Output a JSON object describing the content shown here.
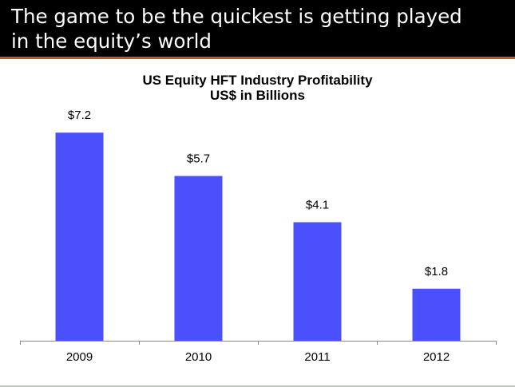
{
  "slide": {
    "title_line1": "The game to be the quickest is getting played",
    "title_line2": "in the equity’s world"
  },
  "colors": {
    "header_background": "#000000",
    "header_accent": "#c8562a",
    "bar": "#4a50fb"
  },
  "chart_data": {
    "type": "bar",
    "title": "US Equity HFT Industry Profitability",
    "subtitle": "US$ in Billions",
    "categories": [
      "2009",
      "2010",
      "2011",
      "2012"
    ],
    "values": [
      7.2,
      5.7,
      4.1,
      1.8
    ],
    "data_labels": [
      "$7.2",
      "$5.7",
      "$4.1",
      "$1.8"
    ],
    "ylim": [
      0,
      8.2
    ],
    "grid": false,
    "legend": "none"
  }
}
